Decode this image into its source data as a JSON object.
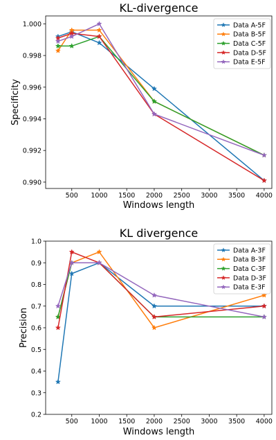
{
  "chart_data": [
    {
      "type": "line",
      "title": "KL-divergence",
      "xlabel": "Windows length",
      "ylabel": "Specificity",
      "xlim": [
        25,
        4140
      ],
      "ylim": [
        0.9896,
        1.0005
      ],
      "xticks": [
        500,
        1000,
        1500,
        2000,
        2500,
        3000,
        3500,
        4000
      ],
      "xtick_labels": [
        "500",
        "1000",
        "1500",
        "2000",
        "2500",
        "3000",
        "3500",
        "4000"
      ],
      "yticks": [
        0.99,
        0.992,
        0.994,
        0.996,
        0.998,
        1.0
      ],
      "ytick_labels": [
        "0.990",
        "0.992",
        "0.994",
        "0.996",
        "0.998",
        "1.000"
      ],
      "grid": false,
      "legend_position": "top-right",
      "x": [
        250,
        500,
        1000,
        2000,
        4000
      ],
      "series": [
        {
          "name": "Data A-5F",
          "color": "#1f77b4",
          "values": [
            0.9992,
            0.9995,
            0.9988,
            0.9959,
            0.9901
          ]
        },
        {
          "name": "Data B-5F",
          "color": "#ff7f0e",
          "values": [
            0.9983,
            0.9996,
            0.9996,
            0.9951,
            0.9917
          ]
        },
        {
          "name": "Data C-5F",
          "color": "#2ca02c",
          "values": [
            0.9986,
            0.9986,
            0.9992,
            0.9951,
            0.9917
          ]
        },
        {
          "name": "Data D-5F",
          "color": "#d62728",
          "values": [
            0.9991,
            0.9994,
            0.9992,
            0.9943,
            0.9901
          ]
        },
        {
          "name": "Data E-5F",
          "color": "#9467bd",
          "values": [
            0.9989,
            0.9992,
            1.0,
            0.9943,
            0.9917
          ]
        }
      ]
    },
    {
      "type": "line",
      "title": "KL divergence",
      "xlabel": "Windows length",
      "ylabel": "Precision",
      "xlim": [
        25,
        4140
      ],
      "ylim": [
        0.2,
        1.0
      ],
      "xticks": [
        500,
        1000,
        1500,
        2000,
        2500,
        3000,
        3500,
        4000
      ],
      "xtick_labels": [
        "500",
        "1000",
        "1500",
        "2000",
        "2500",
        "3000",
        "3500",
        "4000"
      ],
      "yticks": [
        0.2,
        0.3,
        0.4,
        0.5,
        0.6,
        0.7,
        0.8,
        0.9,
        1.0
      ],
      "ytick_labels": [
        "0.2",
        "0.3",
        "0.4",
        "0.5",
        "0.6",
        "0.7",
        "0.8",
        "0.9",
        "1.0"
      ],
      "grid": false,
      "legend_position": "top-right",
      "x": [
        250,
        500,
        1000,
        2000,
        4000
      ],
      "series": [
        {
          "name": "Data A-3F",
          "color": "#1f77b4",
          "values": [
            0.35,
            0.85,
            0.9,
            0.7,
            0.7
          ]
        },
        {
          "name": "Data B-3F",
          "color": "#ff7f0e",
          "values": [
            0.65,
            0.9,
            0.95,
            0.6,
            0.75
          ]
        },
        {
          "name": "Data C-3F",
          "color": "#2ca02c",
          "values": [
            0.65,
            0.9,
            0.9,
            0.65,
            0.65
          ]
        },
        {
          "name": "Data D-3F",
          "color": "#d62728",
          "values": [
            0.6,
            0.95,
            0.9,
            0.65,
            0.7
          ]
        },
        {
          "name": "Data E-3F",
          "color": "#9467bd",
          "values": [
            0.7,
            0.9,
            0.9,
            0.75,
            0.65
          ]
        }
      ]
    }
  ]
}
